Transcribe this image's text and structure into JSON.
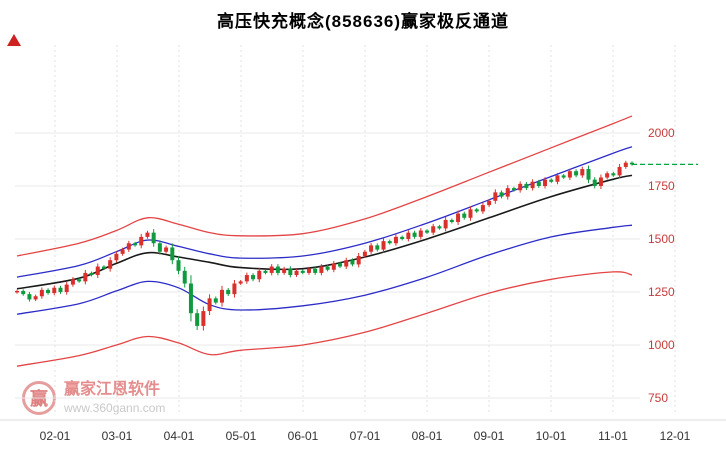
{
  "title": "高压快充概念(858636)赢家极反通道",
  "watermark": {
    "brand": "赢家江恩软件",
    "url": "www.360gann.com",
    "logo_text": "赢"
  },
  "colors": {
    "up": "#d9302c",
    "down": "#0f9a3e",
    "y_label": "#c43c3c",
    "x_label": "#333333",
    "last_price": "#00a43c",
    "grid": "#e9e9e9",
    "vgrid": "#e0e0e0",
    "band_red": "#e34545",
    "band_blue": "#2c2cc8",
    "band_black": "#1a1a1a"
  },
  "chart_data": {
    "type": "candlestick",
    "title": "高压快充概念(858636)赢家极反通道",
    "y_ticks": [
      750,
      1000,
      1250,
      1500,
      1750,
      2000
    ],
    "x_ticks": [
      "02-01",
      "03-01",
      "04-01",
      "05-01",
      "06-01",
      "07-01",
      "08-01",
      "09-01",
      "10-01",
      "11-01",
      "12-01"
    ],
    "ylim": [
      670,
      2415
    ],
    "grid": true,
    "first_open": 1248,
    "closes": [
      1255,
      1240,
      1215,
      1230,
      1260,
      1245,
      1270,
      1250,
      1285,
      1310,
      1300,
      1340,
      1330,
      1370,
      1360,
      1400,
      1430,
      1450,
      1480,
      1470,
      1510,
      1530,
      1480,
      1440,
      1460,
      1400,
      1350,
      1290,
      1150,
      1090,
      1160,
      1220,
      1200,
      1260,
      1240,
      1290,
      1300,
      1330,
      1310,
      1350,
      1340,
      1370,
      1340,
      1360,
      1330,
      1350,
      1340,
      1360,
      1340,
      1370,
      1355,
      1385,
      1370,
      1400,
      1380,
      1420,
      1440,
      1470,
      1450,
      1490,
      1480,
      1510,
      1500,
      1530,
      1510,
      1540,
      1530,
      1560,
      1550,
      1590,
      1580,
      1620,
      1600,
      1640,
      1630,
      1660,
      1680,
      1720,
      1700,
      1740,
      1730,
      1760,
      1740,
      1770,
      1750,
      1780,
      1770,
      1800,
      1790,
      1820,
      1800,
      1830,
      1780,
      1750,
      1790,
      1810,
      1800,
      1840,
      1860,
      1852
    ],
    "last_price_line": 1852,
    "bands": {
      "upper_red": {
        "color": "#e34545",
        "anchors": [
          [
            0,
            1420
          ],
          [
            10,
            1480
          ],
          [
            16,
            1540
          ],
          [
            21,
            1600
          ],
          [
            26,
            1570
          ],
          [
            31,
            1530
          ],
          [
            36,
            1515
          ],
          [
            46,
            1525
          ],
          [
            56,
            1595
          ],
          [
            66,
            1700
          ],
          [
            76,
            1815
          ],
          [
            86,
            1930
          ],
          [
            96,
            2045
          ],
          [
            99,
            2080
          ]
        ]
      },
      "upper_blue": {
        "color": "#2c2cc8",
        "anchors": [
          [
            0,
            1320
          ],
          [
            10,
            1375
          ],
          [
            16,
            1440
          ],
          [
            21,
            1495
          ],
          [
            26,
            1465
          ],
          [
            31,
            1430
          ],
          [
            36,
            1410
          ],
          [
            46,
            1420
          ],
          [
            56,
            1480
          ],
          [
            66,
            1575
          ],
          [
            76,
            1685
          ],
          [
            86,
            1795
          ],
          [
            96,
            1905
          ],
          [
            99,
            1935
          ]
        ]
      },
      "middle_black": {
        "color": "#1a1a1a",
        "anchors": [
          [
            0,
            1265
          ],
          [
            10,
            1315
          ],
          [
            16,
            1385
          ],
          [
            21,
            1435
          ],
          [
            26,
            1415
          ],
          [
            31,
            1390
          ],
          [
            36,
            1365
          ],
          [
            46,
            1360
          ],
          [
            56,
            1415
          ],
          [
            66,
            1500
          ],
          [
            76,
            1600
          ],
          [
            86,
            1700
          ],
          [
            96,
            1782
          ],
          [
            99,
            1800
          ]
        ]
      },
      "lower_blue": {
        "color": "#2c2cc8",
        "anchors": [
          [
            0,
            1145
          ],
          [
            10,
            1195
          ],
          [
            16,
            1255
          ],
          [
            21,
            1300
          ],
          [
            26,
            1270
          ],
          [
            31,
            1190
          ],
          [
            36,
            1165
          ],
          [
            46,
            1185
          ],
          [
            56,
            1235
          ],
          [
            66,
            1320
          ],
          [
            76,
            1425
          ],
          [
            86,
            1510
          ],
          [
            96,
            1555
          ],
          [
            99,
            1565
          ]
        ]
      },
      "lower_red": {
        "color": "#e34545",
        "anchors": [
          [
            0,
            900
          ],
          [
            10,
            950
          ],
          [
            16,
            1000
          ],
          [
            21,
            1040
          ],
          [
            26,
            1010
          ],
          [
            31,
            955
          ],
          [
            36,
            975
          ],
          [
            46,
            1000
          ],
          [
            56,
            1060
          ],
          [
            66,
            1150
          ],
          [
            76,
            1245
          ],
          [
            86,
            1310
          ],
          [
            96,
            1345
          ],
          [
            99,
            1330
          ]
        ]
      }
    }
  }
}
